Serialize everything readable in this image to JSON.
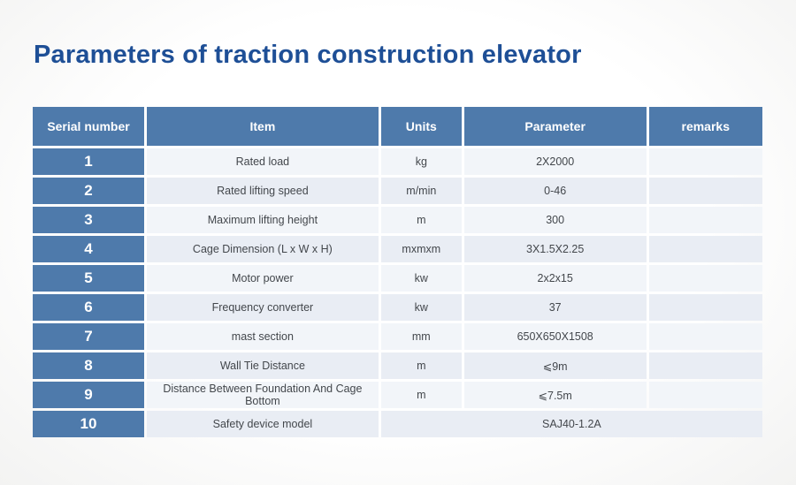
{
  "title": "Parameters of traction construction elevator",
  "colors": {
    "title_text": "#1e4f96",
    "header_bg": "#4e7aab",
    "serial_column_bg": "#4e7aab",
    "row_light": "#f2f5f9",
    "row_dark": "#e9edf4",
    "cell_text": "#43474c"
  },
  "table": {
    "headers": [
      "Serial number",
      "Item",
      "Units",
      "Parameter",
      "remarks"
    ],
    "rows": [
      {
        "serial": "1",
        "item": "Rated load",
        "units": "kg",
        "parameter": "2X2000",
        "remarks": "",
        "merged": false
      },
      {
        "serial": "2",
        "item": "Rated lifting speed",
        "units": "m/min",
        "parameter": "0-46",
        "remarks": "",
        "merged": false
      },
      {
        "serial": "3",
        "item": "Maximum lifting height",
        "units": "m",
        "parameter": "300",
        "remarks": "",
        "merged": false
      },
      {
        "serial": "4",
        "item": "Cage Dimension (L x W x H)",
        "units": "mxmxm",
        "parameter": "3X1.5X2.25",
        "remarks": "",
        "merged": false
      },
      {
        "serial": "5",
        "item": "Motor power",
        "units": "kw",
        "parameter": "2x2x15",
        "remarks": "",
        "merged": false
      },
      {
        "serial": "6",
        "item": "Frequency converter",
        "units": "kw",
        "parameter": "37",
        "remarks": "",
        "merged": false
      },
      {
        "serial": "7",
        "item": "mast section",
        "units": "mm",
        "parameter": "650X650X1508",
        "remarks": "",
        "merged": false
      },
      {
        "serial": "8",
        "item": "Wall Tie Distance",
        "units": "m",
        "parameter": "⩽9m",
        "remarks": "",
        "merged": false
      },
      {
        "serial": "9",
        "item": "Distance Between Foundation And Cage Bottom",
        "units": "m",
        "parameter": "⩽7.5m",
        "remarks": "",
        "merged": false
      },
      {
        "serial": "10",
        "item": "Safety device model",
        "units": "",
        "parameter": "SAJ40-1.2A",
        "remarks": "",
        "merged": true
      }
    ]
  }
}
